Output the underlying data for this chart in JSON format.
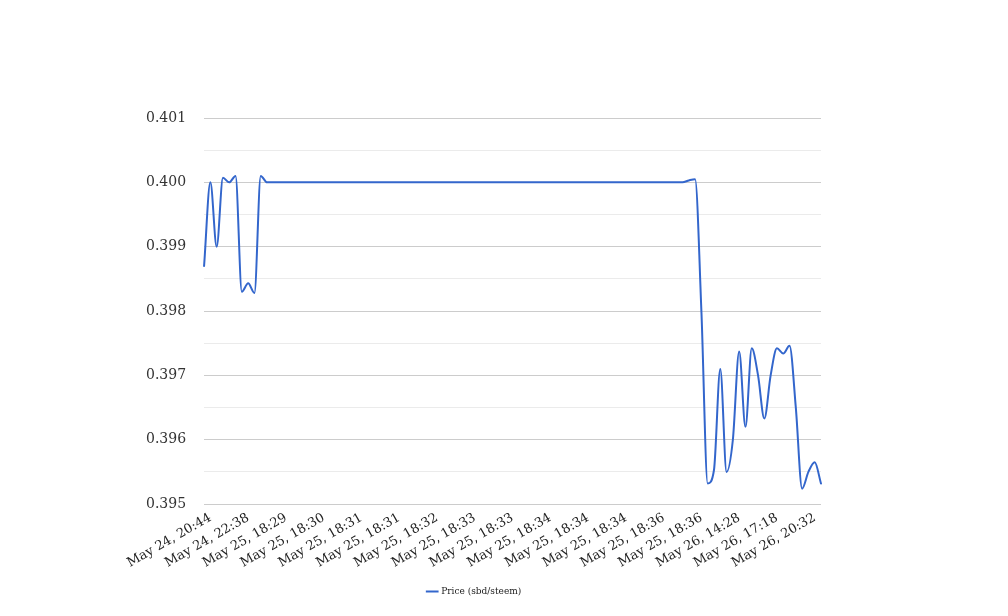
{
  "chart_data": {
    "type": "line",
    "categories": [
      null,
      "May 24, 20:44",
      null,
      null,
      null,
      null,
      null,
      "May 24, 22:38",
      null,
      null,
      null,
      null,
      null,
      "May 25, 18:29",
      null,
      null,
      null,
      null,
      null,
      "May 25, 18:30",
      null,
      null,
      null,
      null,
      null,
      "May 25, 18:31",
      null,
      null,
      null,
      null,
      null,
      "May 25, 18:31",
      null,
      null,
      null,
      null,
      null,
      "May 25, 18:32",
      null,
      null,
      null,
      null,
      null,
      "May 25, 18:33",
      null,
      null,
      null,
      null,
      null,
      "May 25, 18:33",
      null,
      null,
      null,
      null,
      null,
      "May 25, 18:34",
      null,
      null,
      null,
      null,
      null,
      "May 25, 18:34",
      null,
      null,
      null,
      null,
      null,
      "May 25, 18:34",
      null,
      null,
      null,
      null,
      null,
      "May 25, 18:36",
      null,
      null,
      null,
      null,
      null,
      "May 25, 18:36",
      null,
      null,
      null,
      null,
      null,
      "May 26, 14:28",
      null,
      null,
      null,
      null,
      null,
      "May 26, 17:18",
      null,
      null,
      null,
      null,
      null,
      "May 26, 20:32",
      null
    ],
    "series": [
      {
        "name": "Price (sbd/steem)",
        "color": "#3366cc",
        "values": [
          0.3987,
          0.4,
          0.399,
          0.40007,
          0.4,
          0.4001,
          0.3983,
          0.39843,
          0.39828,
          0.4001,
          0.4,
          0.4,
          0.4,
          0.4,
          0.4,
          0.4,
          0.4,
          0.4,
          0.4,
          0.4,
          0.4,
          0.4,
          0.4,
          0.4,
          0.4,
          0.4,
          0.4,
          0.4,
          0.4,
          0.4,
          0.4,
          0.4,
          0.4,
          0.4,
          0.4,
          0.4,
          0.4,
          0.4,
          0.4,
          0.4,
          0.4,
          0.4,
          0.4,
          0.4,
          0.4,
          0.4,
          0.4,
          0.4,
          0.4,
          0.4,
          0.4,
          0.4,
          0.4,
          0.4,
          0.4,
          0.4,
          0.4,
          0.4,
          0.4,
          0.4,
          0.4,
          0.4,
          0.4,
          0.4,
          0.4,
          0.4,
          0.4,
          0.4,
          0.4,
          0.4,
          0.4,
          0.4,
          0.4,
          0.4,
          0.4,
          0.4,
          0.4,
          0.40003,
          0.40005,
          0.398,
          0.39532,
          0.39553,
          0.3971,
          0.3955,
          0.396,
          0.39737,
          0.3962,
          0.39742,
          0.397,
          0.39633,
          0.397,
          0.39742,
          0.39734,
          0.39746,
          0.3965,
          0.39524,
          0.3955,
          0.39565,
          0.39532
        ]
      }
    ],
    "ylim": [
      0.395,
      0.401
    ],
    "yticks": [
      0.395,
      {
        "value": 0.3955,
        "label": null
      },
      0.396,
      {
        "value": 0.3965,
        "label": null
      },
      0.397,
      {
        "value": 0.3975,
        "label": null
      },
      0.398,
      {
        "value": 0.3985,
        "label": null
      },
      0.399,
      {
        "value": 0.3995,
        "label": null
      },
      {
        "value": 0.4,
        "label": "0.400"
      },
      {
        "value": 0.4005,
        "label": null
      },
      0.401
    ],
    "grid": "y",
    "legend": "bottom",
    "marker": "none",
    "line_style": "solid"
  }
}
